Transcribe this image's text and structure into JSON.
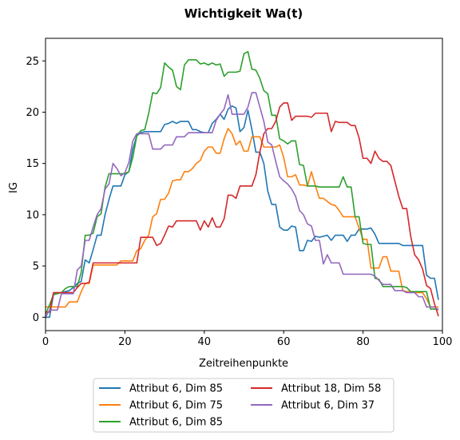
{
  "chart_data": {
    "type": "line",
    "title": "Wichtigkeit Wa(t)",
    "xlabel": "Zeitreihenpunkte",
    "ylabel": "IG",
    "xlim": [
      0,
      100
    ],
    "ylim": [
      -1.3,
      27.2
    ],
    "xticks": [
      0,
      20,
      40,
      60,
      80,
      100
    ],
    "yticks": [
      0,
      5,
      10,
      15,
      20,
      25
    ],
    "grid": false,
    "legend_position": "below",
    "series": [
      {
        "name": "Attribut 6, Dim 85",
        "color": "#1f77b4",
        "x": [
          0,
          1,
          2,
          3,
          4,
          5,
          6,
          7,
          8,
          9,
          10,
          11,
          12,
          13,
          14,
          15,
          16,
          17,
          18,
          19,
          20,
          21,
          22,
          23,
          24,
          25,
          26,
          27,
          28,
          29,
          30,
          31,
          32,
          33,
          34,
          35,
          36,
          37,
          38,
          39,
          40,
          41,
          42,
          43,
          44,
          45,
          46,
          47,
          48,
          49,
          50,
          51,
          52,
          53,
          54,
          55,
          56,
          57,
          58,
          59,
          60,
          61,
          62,
          63,
          64,
          65,
          66,
          67,
          68,
          69,
          70,
          71,
          72,
          73,
          74,
          75,
          76,
          77,
          78,
          79,
          80,
          81,
          82,
          83,
          84,
          85,
          86,
          87,
          88,
          89,
          90,
          91,
          92,
          93,
          94,
          95,
          96,
          97,
          98,
          99
        ],
        "values": [
          0,
          0,
          2.2,
          2.4,
          2.4,
          2.5,
          2.6,
          2.9,
          3.3,
          3.5,
          5.6,
          5.3,
          6.6,
          8.0,
          8.0,
          10.0,
          11.5,
          12.8,
          12.8,
          12.8,
          13.9,
          14.2,
          16.4,
          17.7,
          18.0,
          18.1,
          18.1,
          18.1,
          18.1,
          18.1,
          18.8,
          18.9,
          19.1,
          18.9,
          19.1,
          19.1,
          19.1,
          18.3,
          18.3,
          18.1,
          18.0,
          18.0,
          18.9,
          19.3,
          19.8,
          19.3,
          20.3,
          20.6,
          20.4,
          18.1,
          18.5,
          20.2,
          18.3,
          16.1,
          16.1,
          15.0,
          12.3,
          11.0,
          11.0,
          8.8,
          8.5,
          8.5,
          8.9,
          8.8,
          6.5,
          6.5,
          7.5,
          7.4,
          7.9,
          7.8,
          7.9,
          8.0,
          7.5,
          8.0,
          8.0,
          8.0,
          7.4,
          8.0,
          8.0,
          8.6,
          8.6,
          8.6,
          8.7,
          8.1,
          7.2,
          7.2,
          7.2,
          7.2,
          7.2,
          7.2,
          7.0,
          7.0,
          7.0,
          7.0,
          7.0,
          7.0,
          4.1,
          3.8,
          3.8,
          1.7
        ]
      },
      {
        "name": "Attribut 6, Dim 75",
        "color": "#ff7f0e",
        "x": [
          0,
          1,
          2,
          3,
          4,
          5,
          6,
          7,
          8,
          9,
          10,
          11,
          12,
          13,
          14,
          15,
          16,
          17,
          18,
          19,
          20,
          21,
          22,
          23,
          24,
          25,
          26,
          27,
          28,
          29,
          30,
          31,
          32,
          33,
          34,
          35,
          36,
          37,
          38,
          39,
          40,
          41,
          42,
          43,
          44,
          45,
          46,
          47,
          48,
          49,
          50,
          51,
          52,
          53,
          54,
          55,
          56,
          57,
          58,
          59,
          60,
          61,
          62,
          63,
          64,
          65,
          66,
          67,
          68,
          69,
          70,
          71,
          72,
          73,
          74,
          75,
          76,
          77,
          78,
          79,
          80,
          81,
          82,
          83,
          84,
          85,
          86,
          87,
          88,
          89,
          90,
          91,
          92,
          93,
          94,
          95,
          96,
          97,
          98,
          99
        ],
        "values": [
          1.0,
          1.0,
          1.0,
          1.0,
          1.0,
          1.0,
          1.5,
          1.5,
          1.5,
          2.5,
          3.3,
          3.3,
          5.1,
          5.1,
          5.1,
          5.1,
          5.1,
          5.1,
          5.1,
          5.5,
          5.5,
          5.5,
          5.5,
          6.5,
          6.7,
          7.5,
          8.0,
          9.8,
          10.1,
          11.5,
          11.5,
          12.1,
          13.3,
          13.4,
          13.4,
          14.2,
          14.2,
          14.5,
          15.0,
          15.3,
          16.2,
          16.6,
          16.6,
          16.0,
          16.0,
          17.4,
          18.4,
          17.9,
          16.8,
          17.2,
          16.2,
          16.2,
          17.6,
          17.6,
          17.6,
          16.6,
          16.6,
          16.6,
          16.6,
          16.8,
          15.6,
          13.7,
          13.7,
          13.9,
          12.9,
          12.9,
          12.8,
          14.2,
          12.8,
          11.6,
          11.6,
          11.3,
          11.0,
          10.9,
          10.4,
          9.8,
          9.8,
          9.8,
          9.8,
          8.7,
          7.6,
          7.6,
          4.8,
          4.8,
          4.8,
          5.9,
          5.9,
          4.5,
          4.5,
          4.5,
          2.6,
          2.5,
          2.5,
          2.4,
          2.4,
          2.4,
          1.8,
          1.0,
          1.0,
          1.0
        ]
      },
      {
        "name": "Attribut 6, Dim 85",
        "color": "#2ca02c",
        "x": [
          0,
          1,
          2,
          3,
          4,
          5,
          6,
          7,
          8,
          9,
          10,
          11,
          12,
          13,
          14,
          15,
          16,
          17,
          18,
          19,
          20,
          21,
          22,
          23,
          24,
          25,
          26,
          27,
          28,
          29,
          30,
          31,
          32,
          33,
          34,
          35,
          36,
          37,
          38,
          39,
          40,
          41,
          42,
          43,
          44,
          45,
          46,
          47,
          48,
          49,
          50,
          51,
          52,
          53,
          54,
          55,
          56,
          57,
          58,
          59,
          60,
          61,
          62,
          63,
          64,
          65,
          66,
          67,
          68,
          69,
          70,
          71,
          72,
          73,
          74,
          75,
          76,
          77,
          78,
          79,
          80,
          81,
          82,
          83,
          84,
          85,
          86,
          87,
          88,
          89,
          90,
          91,
          92,
          93,
          94,
          95,
          96,
          97,
          98,
          99
        ],
        "values": [
          0.3,
          1.2,
          2.2,
          2.3,
          2.4,
          2.8,
          3.0,
          3.0,
          3.0,
          4.4,
          8.0,
          8.0,
          8.2,
          9.8,
          10.1,
          12.7,
          14.0,
          14.0,
          14.0,
          14.0,
          14.0,
          14.2,
          15.6,
          17.7,
          18.2,
          18.3,
          19.9,
          21.9,
          21.8,
          22.4,
          24.8,
          24.4,
          24.1,
          22.5,
          22.2,
          24.6,
          25.1,
          25.1,
          25.1,
          24.7,
          24.8,
          24.6,
          24.8,
          24.6,
          24.7,
          23.5,
          23.9,
          23.9,
          23.9,
          24.0,
          25.7,
          25.9,
          24.2,
          24.1,
          23.3,
          22.1,
          21.8,
          19.7,
          19.7,
          17.4,
          17.2,
          16.9,
          17.2,
          17.2,
          14.9,
          14.8,
          12.8,
          12.8,
          12.8,
          12.7,
          12.7,
          12.7,
          12.7,
          12.7,
          12.7,
          13.7,
          12.7,
          12.7,
          9.8,
          9.8,
          7.2,
          7.1,
          7.1,
          3.8,
          3.7,
          3.0,
          3.0,
          3.0,
          3.0,
          3.0,
          3.0,
          2.9,
          2.5,
          2.5,
          2.5,
          2.5,
          2.5,
          0.8,
          0.8,
          0.8
        ]
      },
      {
        "name": "Attribut 18, Dim 58",
        "color": "#d62728",
        "x": [
          0,
          1,
          2,
          3,
          4,
          5,
          6,
          7,
          8,
          9,
          10,
          11,
          12,
          13,
          14,
          15,
          16,
          17,
          18,
          19,
          20,
          21,
          22,
          23,
          24,
          25,
          26,
          27,
          28,
          29,
          30,
          31,
          32,
          33,
          34,
          35,
          36,
          37,
          38,
          39,
          40,
          41,
          42,
          43,
          44,
          45,
          46,
          47,
          48,
          49,
          50,
          51,
          52,
          53,
          54,
          55,
          56,
          57,
          58,
          59,
          60,
          61,
          62,
          63,
          64,
          65,
          66,
          67,
          68,
          69,
          70,
          71,
          72,
          73,
          74,
          75,
          76,
          77,
          78,
          79,
          80,
          81,
          82,
          83,
          84,
          85,
          86,
          87,
          88,
          89,
          90,
          91,
          92,
          93,
          94,
          95,
          96,
          97,
          98,
          99
        ],
        "values": [
          0.5,
          0.5,
          2.4,
          2.4,
          2.4,
          2.4,
          2.4,
          2.4,
          2.9,
          3.3,
          3.3,
          3.4,
          5.3,
          5.3,
          5.3,
          5.3,
          5.3,
          5.3,
          5.3,
          5.3,
          5.3,
          5.3,
          5.3,
          5.3,
          7.8,
          7.8,
          7.8,
          7.8,
          7.0,
          7.2,
          8.0,
          8.9,
          8.8,
          9.4,
          9.4,
          9.4,
          9.4,
          9.4,
          9.4,
          8.5,
          9.4,
          8.8,
          9.7,
          8.8,
          8.8,
          9.6,
          11.9,
          11.9,
          11.6,
          12.8,
          12.8,
          12.8,
          12.8,
          13.9,
          16.1,
          17.9,
          18.4,
          18.4,
          19.1,
          20.5,
          20.9,
          20.9,
          19.2,
          19.6,
          19.6,
          19.6,
          19.6,
          19.5,
          19.9,
          19.9,
          19.9,
          19.9,
          18.1,
          19.1,
          19.0,
          19.0,
          19.0,
          18.7,
          18.7,
          17.5,
          15.5,
          15.5,
          15.0,
          16.2,
          15.5,
          15.2,
          15.2,
          14.8,
          13.3,
          11.8,
          10.6,
          10.6,
          7.9,
          6.1,
          5.6,
          4.7,
          3.1,
          2.8,
          1.3,
          0.1
        ]
      },
      {
        "name": "Attribut 6, Dim 37",
        "color": "#9467bd",
        "x": [
          0,
          1,
          2,
          3,
          4,
          5,
          6,
          7,
          8,
          9,
          10,
          11,
          12,
          13,
          14,
          15,
          16,
          17,
          18,
          19,
          20,
          21,
          22,
          23,
          24,
          25,
          26,
          27,
          28,
          29,
          30,
          31,
          32,
          33,
          34,
          35,
          36,
          37,
          38,
          39,
          40,
          41,
          42,
          43,
          44,
          45,
          46,
          47,
          48,
          49,
          50,
          51,
          52,
          53,
          54,
          55,
          56,
          57,
          58,
          59,
          60,
          61,
          62,
          63,
          64,
          65,
          66,
          67,
          68,
          69,
          70,
          71,
          72,
          73,
          74,
          75,
          76,
          77,
          78,
          79,
          80,
          81,
          82,
          83,
          84,
          85,
          86,
          87,
          88,
          89,
          90,
          91,
          92,
          93,
          94,
          95,
          96,
          97,
          98,
          99
        ],
        "values": [
          0,
          0.7,
          0.7,
          0.7,
          2.3,
          2.3,
          2.3,
          2.3,
          4.6,
          5.0,
          7.5,
          7.5,
          8.8,
          10.0,
          10.6,
          12.5,
          13.0,
          15.0,
          14.5,
          13.8,
          14.1,
          15.1,
          17.2,
          17.9,
          17.9,
          17.9,
          17.9,
          16.4,
          16.4,
          16.4,
          16.8,
          16.8,
          16.8,
          17.6,
          17.6,
          17.6,
          18.0,
          18.0,
          18.0,
          18.0,
          18.0,
          18.0,
          18.0,
          19.2,
          19.8,
          20.3,
          21.7,
          19.8,
          19.8,
          19.8,
          19.8,
          20.5,
          21.9,
          21.9,
          20.5,
          19.1,
          17.1,
          16.8,
          15.2,
          13.7,
          13.3,
          13.0,
          12.5,
          11.8,
          10.4,
          10.0,
          9.1,
          8.9,
          7.5,
          7.5,
          5.2,
          6.1,
          5.3,
          5.3,
          5.3,
          4.2,
          4.2,
          4.2,
          4.2,
          4.2,
          4.2,
          4.2,
          4.2,
          4.0,
          3.6,
          3.2,
          3.2,
          3.2,
          2.6,
          2.6,
          2.6,
          2.4,
          2.4,
          2.4,
          2.0,
          2.0,
          1.0,
          1.0,
          1.0,
          0.7
        ]
      }
    ]
  }
}
